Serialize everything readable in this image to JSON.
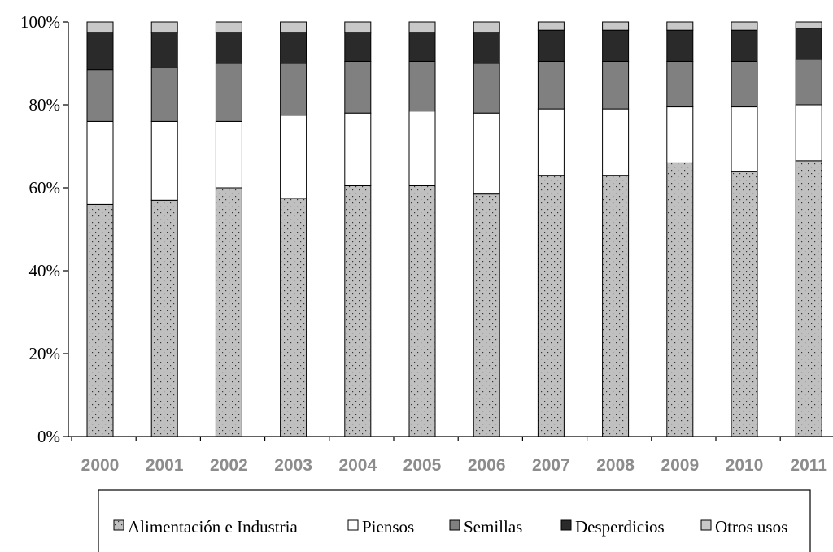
{
  "chart_data": {
    "type": "bar",
    "stacked": true,
    "percent_stacked": true,
    "title": "",
    "xlabel": "",
    "ylabel": "",
    "ylim": [
      0,
      100
    ],
    "y_tick_values": [
      0,
      20,
      40,
      60,
      80,
      100
    ],
    "y_tick_labels": [
      "0%",
      "20%",
      "40%",
      "60%",
      "80%",
      "100%"
    ],
    "categories": [
      "2000",
      "2001",
      "2002",
      "2003",
      "2004",
      "2005",
      "2006",
      "2007",
      "2008",
      "2009",
      "2010",
      "2011"
    ],
    "grid": false,
    "legend_position": "bottom",
    "series": [
      {
        "name": "Alimentación e Industria",
        "color": "#c0c0c0",
        "pattern": "dots",
        "values": [
          56,
          57,
          60,
          57.5,
          60.5,
          60.5,
          58.5,
          63,
          63,
          66,
          64,
          66.5
        ]
      },
      {
        "name": "Piensos",
        "color": "#ffffff",
        "pattern": "none",
        "values": [
          20,
          19,
          16,
          20,
          17.5,
          18,
          19.5,
          16,
          16,
          13.5,
          15.5,
          13.5
        ]
      },
      {
        "name": "Semillas",
        "color": "#808080",
        "pattern": "none",
        "values": [
          12.5,
          13,
          14,
          12.5,
          12.5,
          12,
          12,
          11.5,
          11.5,
          11,
          11,
          11
        ]
      },
      {
        "name": "Desperdicios",
        "color": "#2a2a2a",
        "pattern": "none",
        "values": [
          9,
          8.5,
          7.5,
          7.5,
          7,
          7,
          7.5,
          7.5,
          7.5,
          7.5,
          7.5,
          7.5
        ]
      },
      {
        "name": "Otros usos",
        "color": "#c8c8c8",
        "pattern": "none",
        "values": [
          2.5,
          2.5,
          2.5,
          2.5,
          2.5,
          2.5,
          2.5,
          2,
          2,
          2,
          2,
          1.5
        ]
      }
    ]
  }
}
